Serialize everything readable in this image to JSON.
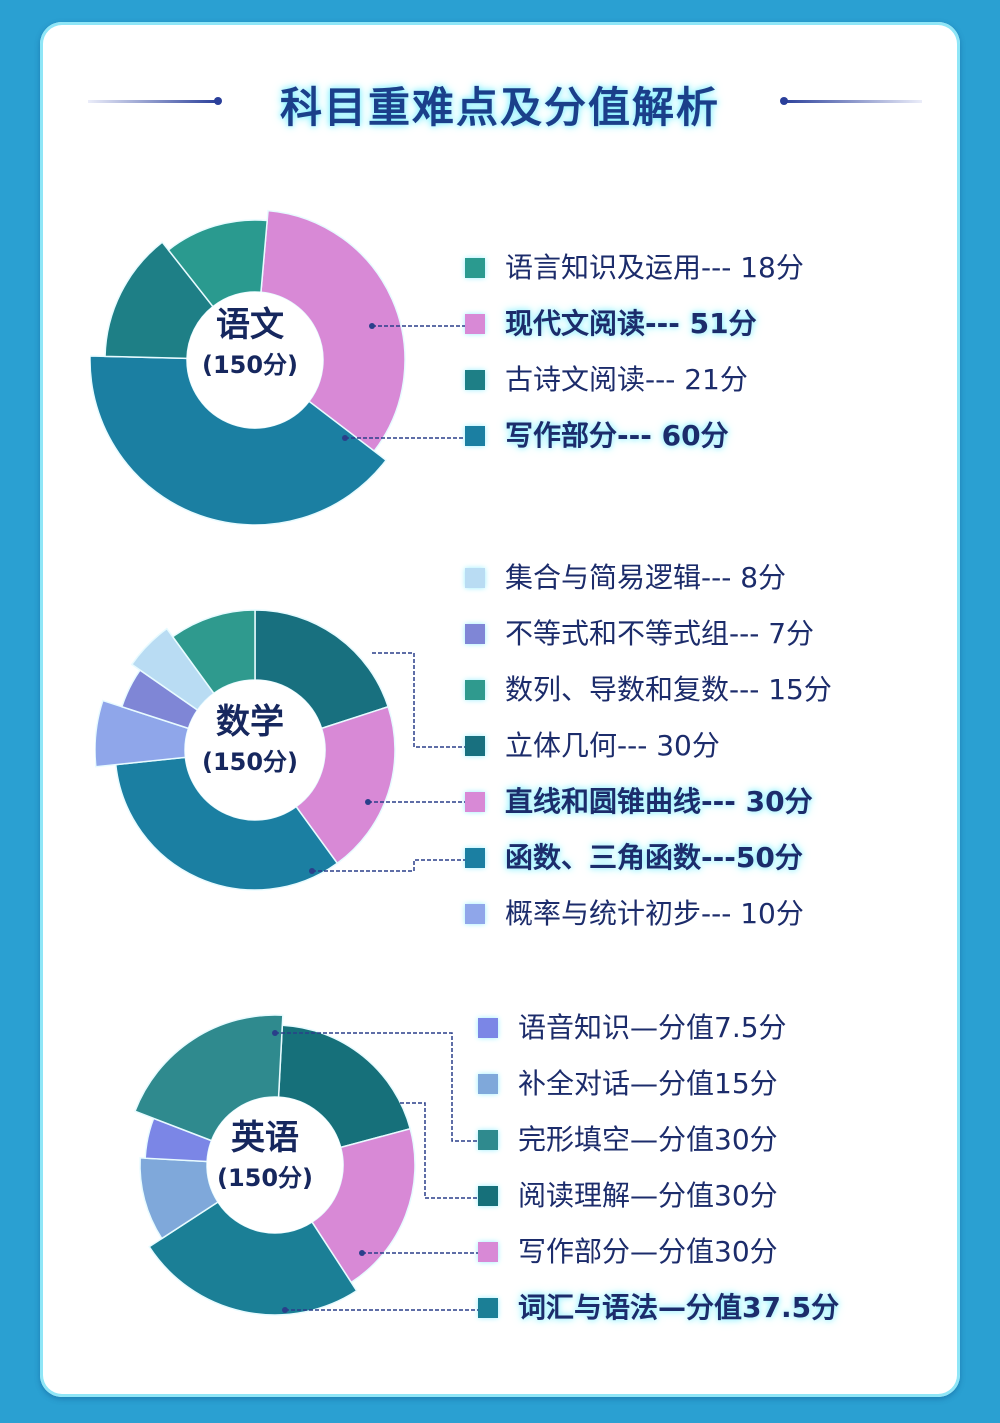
{
  "header": {
    "title": "科目重难点及分值解析"
  },
  "colors": {
    "background": "#2aa0d2",
    "card": "#ffffff",
    "title": "#1b3f8a",
    "text": "#1c2c6b"
  },
  "chart_data": [
    {
      "type": "pie",
      "title": "语文",
      "subtitle": "(150分)",
      "total": 150,
      "categories": [
        "语言知识及运用",
        "现代文阅读",
        "古诗文阅读",
        "写作部分"
      ],
      "values": [
        18,
        51,
        21,
        60
      ],
      "unit": "分",
      "legend": [
        {
          "label": "语言知识及运用--- 18分",
          "color": "#2a9a8f",
          "bold": false
        },
        {
          "label": "现代文阅读--- 51分",
          "color": "#d889d6",
          "bold": true
        },
        {
          "label": "古诗文阅读--- 21分",
          "color": "#1e7f86",
          "bold": false
        },
        {
          "label": "写作部分--- 60分",
          "color": "#1b7fa2",
          "bold": true
        }
      ]
    },
    {
      "type": "pie",
      "title": "数学",
      "subtitle": "(150分)",
      "total": 150,
      "categories": [
        "集合与简易逻辑",
        "不等式和不等式组",
        "数列、导数和复数",
        "立体几何",
        "直线和圆锥曲线",
        "函数、三角函数",
        "概率与统计初步"
      ],
      "values": [
        8,
        7,
        15,
        30,
        30,
        50,
        10
      ],
      "unit": "分",
      "legend": [
        {
          "label": "集合与简易逻辑--- 8分",
          "color": "#b9dcf3",
          "bold": false
        },
        {
          "label": "不等式和不等式组--- 7分",
          "color": "#7f86d6",
          "bold": false
        },
        {
          "label": "数列、导数和复数--- 15分",
          "color": "#2f9a8e",
          "bold": false
        },
        {
          "label": "立体几何--- 30分",
          "color": "#18707f",
          "bold": false
        },
        {
          "label": "直线和圆锥曲线--- 30分",
          "color": "#d889d6",
          "bold": true
        },
        {
          "label": "函数、三角函数---50分",
          "color": "#1b7fa2",
          "bold": true
        },
        {
          "label": "概率与统计初步--- 10分",
          "color": "#8fa6ea",
          "bold": false
        }
      ]
    },
    {
      "type": "pie",
      "title": "英语",
      "subtitle": "(150分)",
      "total": 150,
      "categories": [
        "语音知识",
        "补全对话",
        "完形填空",
        "阅读理解",
        "写作部分",
        "词汇与语法"
      ],
      "values": [
        7.5,
        15,
        30,
        30,
        30,
        37.5
      ],
      "unit": "分",
      "legend": [
        {
          "label": "语音知识—分值7.5分",
          "color": "#7b86e6",
          "bold": false
        },
        {
          "label": "补全对话—分值15分",
          "color": "#7fa8da",
          "bold": false
        },
        {
          "label": "完形填空—分值30分",
          "color": "#2f8a8e",
          "bold": false
        },
        {
          "label": "阅读理解—分值30分",
          "color": "#16707a",
          "bold": false
        },
        {
          "label": "写作部分—分值30分",
          "color": "#d889d6",
          "bold": false
        },
        {
          "label": "词汇与语法—分值37.5分",
          "color": "#1b7f96",
          "bold": true
        }
      ]
    }
  ]
}
